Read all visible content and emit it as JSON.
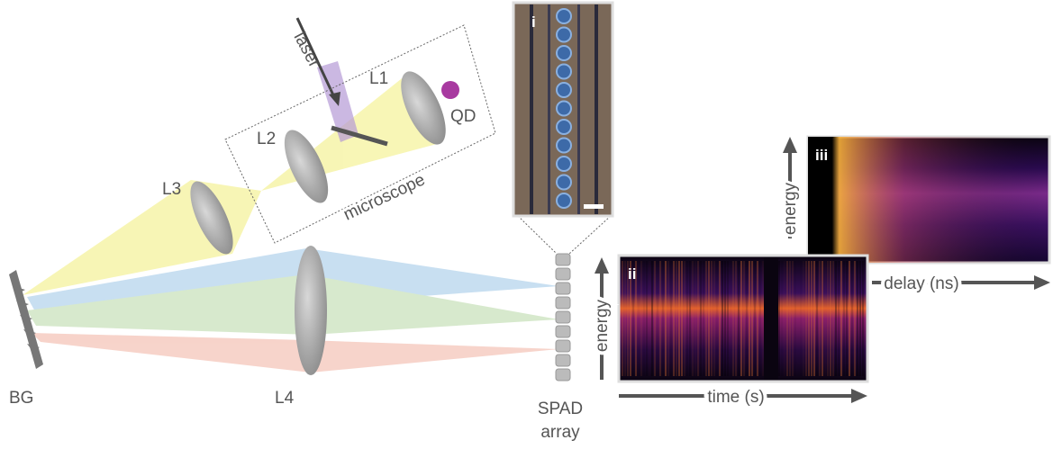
{
  "labels": {
    "laser": "laser",
    "l1": "L1",
    "qd": "QD",
    "l2": "L2",
    "microscope": "microscope",
    "l3": "L3",
    "bg": "BG",
    "l4": "L4",
    "spad": [
      "SPAD",
      "array"
    ]
  },
  "panels": {
    "i": {
      "tag": "i"
    },
    "ii": {
      "tag": "ii",
      "y_axis": "energy",
      "x_axis": "time (s)"
    },
    "iii": {
      "tag": "iii",
      "y_axis": "energy",
      "x_axis": "delay (ns)"
    }
  }
}
